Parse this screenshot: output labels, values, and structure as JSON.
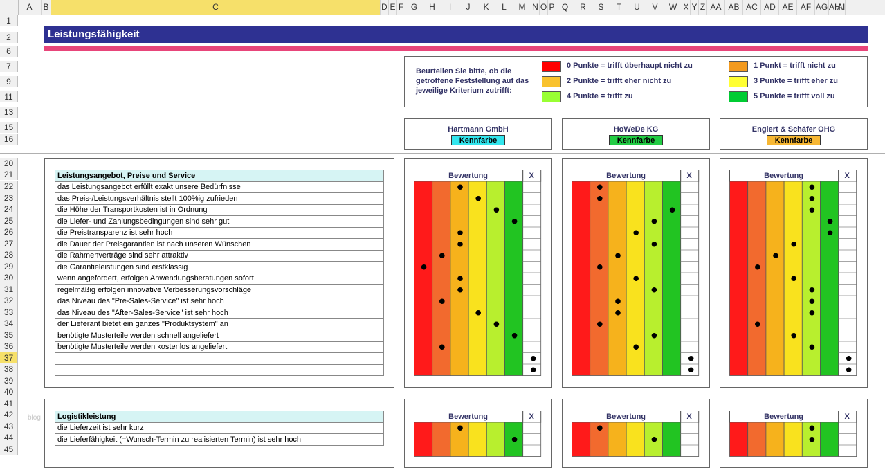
{
  "spreadsheet": {
    "columns": [
      "A",
      "B",
      "C",
      "D",
      "E",
      "F",
      "G",
      "H",
      "I",
      "J",
      "K",
      "L",
      "M",
      "N",
      "O",
      "P",
      "Q",
      "R",
      "S",
      "T",
      "U",
      "V",
      "W",
      "X",
      "Y",
      "Z",
      "AA",
      "AB",
      "AC",
      "AD",
      "AE",
      "AF",
      "AG",
      "AH",
      "AI"
    ],
    "selected_column": "C",
    "rows": [
      "1",
      "2",
      "6",
      "7",
      "9",
      "11",
      "13",
      "15",
      "16",
      "20",
      "21",
      "22",
      "23",
      "24",
      "25",
      "26",
      "27",
      "28",
      "29",
      "30",
      "31",
      "32",
      "33",
      "34",
      "35",
      "36",
      "37",
      "38",
      "39",
      "40",
      "41",
      "42",
      "43",
      "44",
      "45"
    ],
    "selected_row": "37"
  },
  "title": "Leistungsfähigkeit",
  "legend": {
    "intro": "Beurteilen Sie bitte, ob die getroffene Feststellung auf das jeweilige Kriterium zutrifft:",
    "items": [
      {
        "label": "0 Punkte = trifft überhaupt nicht zu",
        "color": "#ff0000"
      },
      {
        "label": "1 Punkt   = trifft nicht zu",
        "color": "#f39a1e"
      },
      {
        "label": "2 Punkte = trifft eher nicht zu",
        "color": "#f9c22d"
      },
      {
        "label": "3 Punkte = trifft eher zu",
        "color": "#ffff33"
      },
      {
        "label": "4 Punkte = trifft zu",
        "color": "#99ff33"
      },
      {
        "label": "5 Punkte = trifft voll zu",
        "color": "#00cc33"
      }
    ]
  },
  "companies": [
    {
      "name": "Hartmann GmbH",
      "kennfarbe": "Kennfarbe",
      "color": "#33e6ee"
    },
    {
      "name": "HoWeDe KG",
      "kennfarbe": "Kennfarbe",
      "color": "#22cc44"
    },
    {
      "name": "Englert & Schäfer OHG",
      "kennfarbe": "Kennfarbe",
      "color": "#f7b733"
    }
  ],
  "rating_header": {
    "bewertung": "Bewertung",
    "x": "X"
  },
  "rating_colors": [
    "#ff1a1a",
    "#f26a2e",
    "#f6b21c",
    "#f9e21e",
    "#b8ef2e",
    "#22c422"
  ],
  "section1": {
    "title": "Leistungsangebot, Preise und Service",
    "criteria": [
      "das Leistungsangebot erfüllt exakt unsere Bedürfnisse",
      "das Preis-/Leistungsverhältnis stellt 100%ig zufrieden",
      "die Höhe der Transportkosten ist in Ordnung",
      "die Liefer- und Zahlungsbedingungen sind sehr gut",
      "die Preistransparenz ist sehr hoch",
      "die Dauer der Preisgarantien ist nach unseren Wünschen",
      "die Rahmenverträge sind sehr attraktiv",
      "die Garantieleistungen sind erstklassig",
      "wenn angefordert, erfolgen Anwendungsberatungen sofort",
      "regelmäßig erfolgen innovative Verbesserungsvorschläge",
      "das Niveau des \"Pre-Sales-Service\" ist sehr hoch",
      "das Niveau des \"After-Sales-Service\" ist sehr hoch",
      "der Lieferant bietet ein ganzes \"Produktsystem\" an",
      "benötigte Musterteile werden schnell angeliefert",
      "benötigte Musterteile werden kostenlos angeliefert",
      "",
      ""
    ],
    "ratings": [
      [
        2,
        3,
        4,
        5,
        2,
        2,
        1,
        0,
        2,
        2,
        1,
        3,
        4,
        5,
        1,
        "x",
        "x"
      ],
      [
        1,
        1,
        5,
        4,
        3,
        4,
        2,
        1,
        3,
        4,
        2,
        2,
        1,
        4,
        3,
        "x",
        "x"
      ],
      [
        4,
        4,
        4,
        5,
        5,
        3,
        2,
        1,
        3,
        4,
        4,
        4,
        1,
        3,
        4,
        "x",
        "x"
      ]
    ]
  },
  "section2": {
    "title": "Logistikleistung",
    "criteria": [
      "die Lieferzeit ist sehr kurz",
      "die Lieferfähigkeit (=Wunsch-Termin zu realisierten Termin) ist sehr hoch"
    ],
    "ratings": [
      [
        2,
        5
      ],
      [
        1,
        4
      ],
      [
        4,
        4
      ]
    ]
  },
  "watermark": "blog"
}
